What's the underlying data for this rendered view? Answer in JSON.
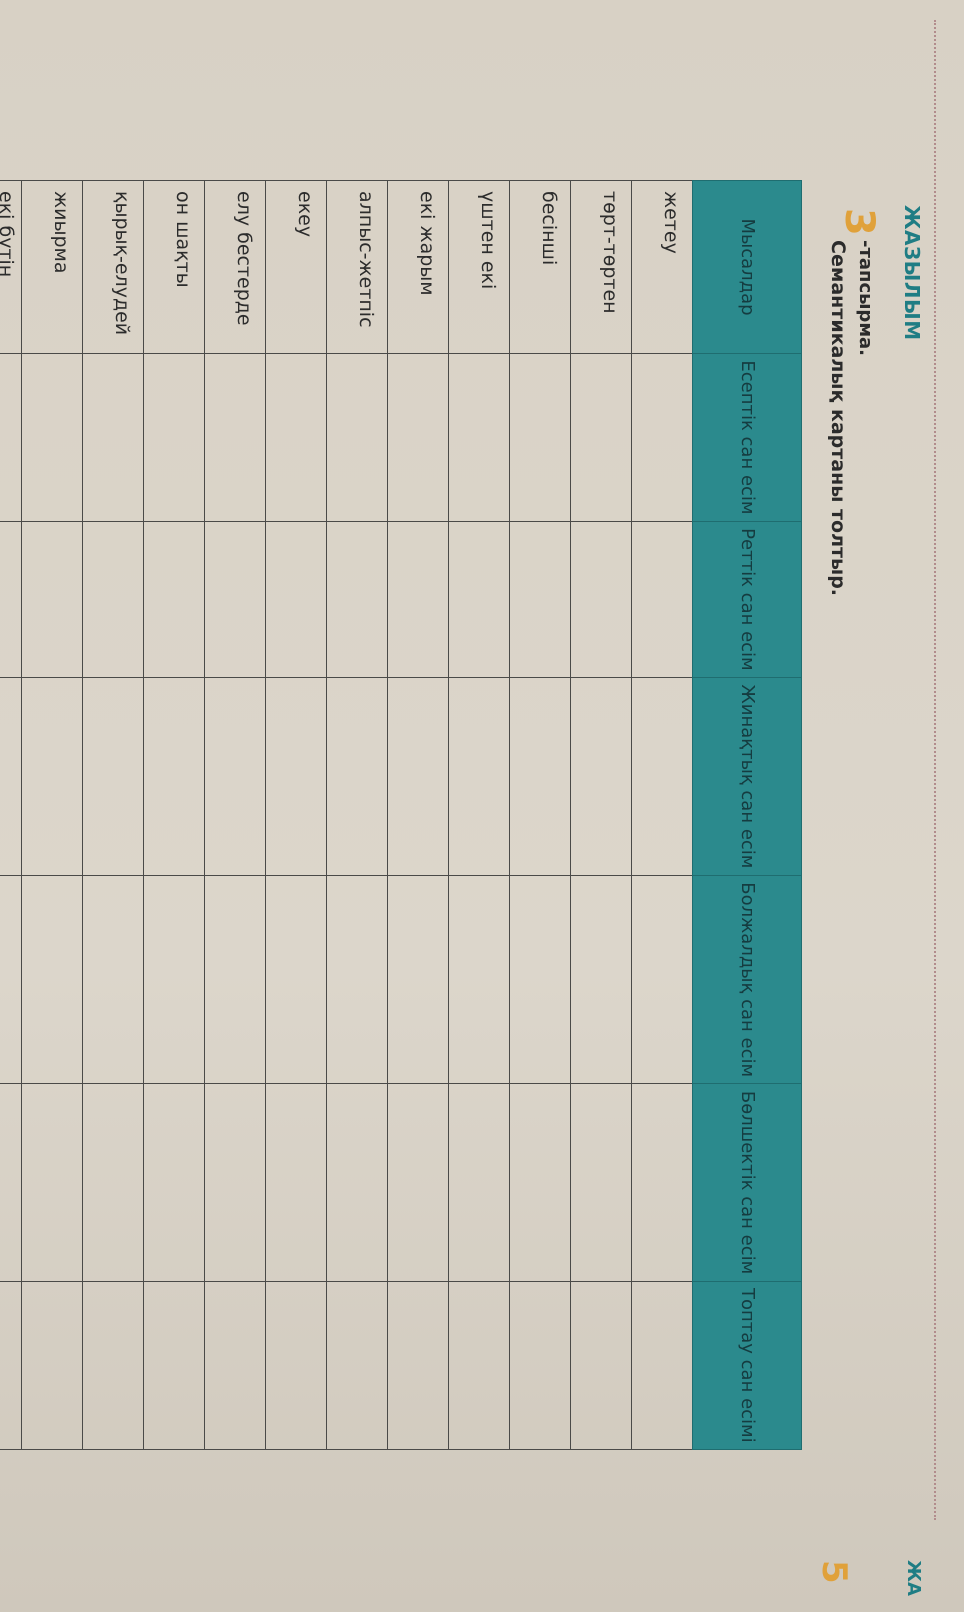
{
  "header": {
    "section": "ЖАЗЫЛЫМ",
    "task_number": "3",
    "task_label": "-тапсырма.",
    "instruction": "Семантикалық картаны толтыр.",
    "right_section": "ЖА",
    "right_number": "5"
  },
  "colors": {
    "accent": "#2b8a8d",
    "number": "#e0a13a"
  },
  "table": {
    "columns": [
      "Мысалдар",
      "Есептік сан есім",
      "Реттік сан есім",
      "Жинақтық сан есім",
      "Болжалдық сан есім",
      "Бөлшектік сан есім",
      "Топтау сан есімі"
    ],
    "rows": [
      "жетеу",
      "төрт-төртен",
      "бесінші",
      "үштен екі",
      "екі жарым",
      "алпыс-жетпіс",
      "екеу",
      "елу бестерде",
      "он шақты",
      "қырық-елудей",
      "жиырма",
      "екі бүтін оннан бес"
    ]
  }
}
